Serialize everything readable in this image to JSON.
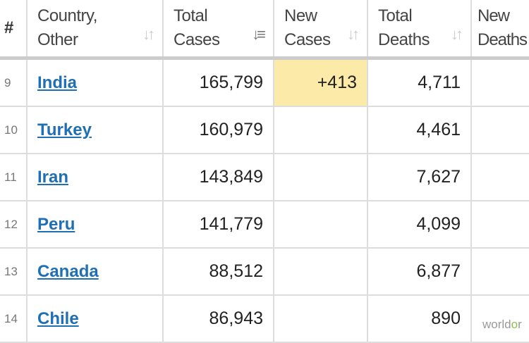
{
  "headers": {
    "number": "#",
    "country": [
      "Country,",
      "Other"
    ],
    "total_cases": [
      "Total",
      "Cases"
    ],
    "new_cases": [
      "New",
      "Cases"
    ],
    "total_deaths": [
      "Total",
      "Deaths"
    ],
    "new_deaths": [
      "New",
      "Deaths"
    ]
  },
  "sort_icons": {
    "inactive": "sort-arrows-icon",
    "active": "sort-descending-icon",
    "active_column": "total_cases"
  },
  "rows": [
    {
      "num": "9",
      "country": "India",
      "total_cases": "165,799",
      "new_cases": "+413",
      "total_deaths": "4,711",
      "new_deaths": ""
    },
    {
      "num": "10",
      "country": "Turkey",
      "total_cases": "160,979",
      "new_cases": "",
      "total_deaths": "4,461",
      "new_deaths": ""
    },
    {
      "num": "11",
      "country": "Iran",
      "total_cases": "143,849",
      "new_cases": "",
      "total_deaths": "7,627",
      "new_deaths": ""
    },
    {
      "num": "12",
      "country": "Peru",
      "total_cases": "141,779",
      "new_cases": "",
      "total_deaths": "4,099",
      "new_deaths": ""
    },
    {
      "num": "13",
      "country": "Canada",
      "total_cases": "88,512",
      "new_cases": "",
      "total_deaths": "6,877",
      "new_deaths": ""
    },
    {
      "num": "14",
      "country": "Chile",
      "total_cases": "86,943",
      "new_cases": "",
      "total_deaths": "890",
      "new_deaths": ""
    }
  ],
  "colors": {
    "link": "#1f6fb5",
    "new_cases_highlight": "#fbeaa8"
  },
  "watermark": {
    "a": "world",
    "b": "o",
    "c": "r"
  }
}
